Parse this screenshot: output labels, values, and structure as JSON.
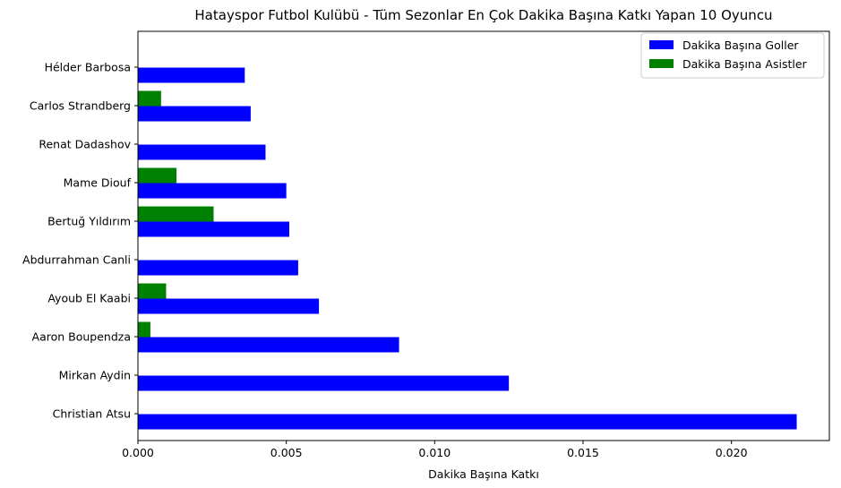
{
  "chart_data": {
    "type": "bar",
    "orientation": "horizontal",
    "title": "Hatayspor Futbol Kulübü - Tüm Sezonlar En Çok Dakika Başına Katkı Yapan 10 Oyuncu",
    "xlabel": "Dakika Başına Katkı",
    "ylabel": "",
    "categories": [
      "Christian Atsu",
      "Mirkan Aydin",
      "Aaron Boupendza",
      "Ayoub El Kaabi",
      "Abdurrahman Canli",
      "Bertuğ Yıldırım",
      "Mame Diouf",
      "Renat Dadashov",
      "Carlos Strandberg",
      "Hélder Barbosa"
    ],
    "series": [
      {
        "name": "Dakika Başına Goller",
        "color": "#0000ff",
        "values": [
          0.0222,
          0.0125,
          0.0088,
          0.0061,
          0.0054,
          0.0051,
          0.005,
          0.0043,
          0.0038,
          0.0036
        ]
      },
      {
        "name": "Dakika Başına Asistler",
        "color": "#008000",
        "values": [
          0.0,
          0.0,
          0.00042,
          0.00095,
          0.0,
          0.00255,
          0.0013,
          0.0,
          0.00078,
          0.0
        ]
      }
    ],
    "xlim": [
      0,
      0.0233
    ],
    "xticks": [
      0.0,
      0.005,
      0.01,
      0.015,
      0.02
    ],
    "xtick_labels": [
      "0.000",
      "0.005",
      "0.010",
      "0.015",
      "0.020"
    ],
    "legend": "top-right",
    "grid": false
  }
}
